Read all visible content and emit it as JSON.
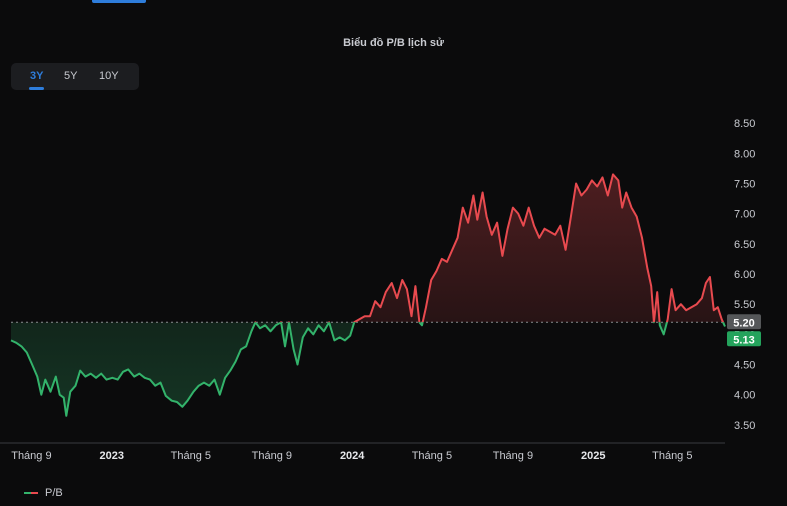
{
  "header": {
    "title": "Biểu đồ P/B lịch sử"
  },
  "tabs": [
    {
      "label": "3Y",
      "active": true
    },
    {
      "label": "5Y",
      "active": false
    },
    {
      "label": "10Y",
      "active": false
    }
  ],
  "legend": {
    "label": "P/B"
  },
  "colors": {
    "up": "#e84a4f",
    "down": "#33b36b",
    "active_tab": "#2e7ddb",
    "baseline_badge": "#555759",
    "current_badge": "#24a35c"
  },
  "chart_data": {
    "type": "area",
    "series_name": "P/B",
    "ylim": [
      3.2,
      8.75
    ],
    "yticks": [
      "3.50",
      "4.00",
      "4.50",
      "5.00",
      "5.50",
      "6.00",
      "6.50",
      "7.00",
      "7.50",
      "8.00",
      "8.50"
    ],
    "x_range": [
      "2022-08-01",
      "2025-07-20"
    ],
    "xticks": [
      {
        "date": "2022-09-01",
        "label": "Tháng 9",
        "bold": false
      },
      {
        "date": "2023-01-01",
        "label": "2023",
        "bold": true
      },
      {
        "date": "2023-05-01",
        "label": "Tháng 5",
        "bold": false
      },
      {
        "date": "2023-09-01",
        "label": "Tháng 9",
        "bold": false
      },
      {
        "date": "2024-01-01",
        "label": "2024",
        "bold": true
      },
      {
        "date": "2024-05-01",
        "label": "Tháng 5",
        "bold": false
      },
      {
        "date": "2024-09-01",
        "label": "Tháng 9",
        "bold": false
      },
      {
        "date": "2025-01-01",
        "label": "2025",
        "bold": true
      },
      {
        "date": "2025-05-01",
        "label": "Tháng 5",
        "bold": false
      }
    ],
    "baseline": {
      "value": 5.2,
      "label": "5.20"
    },
    "current": {
      "value": 5.13,
      "label": "5.13"
    },
    "points": [
      [
        "2022-08-01",
        4.9
      ],
      [
        "2022-08-09",
        4.86
      ],
      [
        "2022-08-17",
        4.8
      ],
      [
        "2022-08-25",
        4.7
      ],
      [
        "2022-09-02",
        4.5
      ],
      [
        "2022-09-10",
        4.3
      ],
      [
        "2022-09-16",
        4.0
      ],
      [
        "2022-09-22",
        4.25
      ],
      [
        "2022-09-30",
        4.05
      ],
      [
        "2022-10-08",
        4.3
      ],
      [
        "2022-10-14",
        4.0
      ],
      [
        "2022-10-20",
        3.95
      ],
      [
        "2022-10-24",
        3.65
      ],
      [
        "2022-10-30",
        4.05
      ],
      [
        "2022-11-07",
        4.15
      ],
      [
        "2022-11-14",
        4.4
      ],
      [
        "2022-11-22",
        4.3
      ],
      [
        "2022-11-30",
        4.35
      ],
      [
        "2022-12-08",
        4.28
      ],
      [
        "2022-12-16",
        4.35
      ],
      [
        "2022-12-24",
        4.25
      ],
      [
        "2023-01-02",
        4.28
      ],
      [
        "2023-01-10",
        4.25
      ],
      [
        "2023-01-18",
        4.38
      ],
      [
        "2023-01-26",
        4.42
      ],
      [
        "2023-02-04",
        4.3
      ],
      [
        "2023-02-12",
        4.35
      ],
      [
        "2023-02-20",
        4.28
      ],
      [
        "2023-02-28",
        4.25
      ],
      [
        "2023-03-08",
        4.15
      ],
      [
        "2023-03-16",
        4.2
      ],
      [
        "2023-03-24",
        3.98
      ],
      [
        "2023-04-02",
        3.9
      ],
      [
        "2023-04-10",
        3.88
      ],
      [
        "2023-04-18",
        3.8
      ],
      [
        "2023-04-26",
        3.9
      ],
      [
        "2023-05-05",
        4.05
      ],
      [
        "2023-05-13",
        4.15
      ],
      [
        "2023-05-21",
        4.2
      ],
      [
        "2023-05-29",
        4.15
      ],
      [
        "2023-06-06",
        4.25
      ],
      [
        "2023-06-14",
        4.0
      ],
      [
        "2023-06-22",
        4.28
      ],
      [
        "2023-06-30",
        4.4
      ],
      [
        "2023-07-08",
        4.55
      ],
      [
        "2023-07-16",
        4.75
      ],
      [
        "2023-07-24",
        4.8
      ],
      [
        "2023-08-01",
        5.05
      ],
      [
        "2023-08-07",
        5.2
      ],
      [
        "2023-08-14",
        5.1
      ],
      [
        "2023-08-22",
        5.15
      ],
      [
        "2023-08-30",
        5.05
      ],
      [
        "2023-09-07",
        5.15
      ],
      [
        "2023-09-15",
        5.2
      ],
      [
        "2023-09-21",
        4.8
      ],
      [
        "2023-09-27",
        5.2
      ],
      [
        "2023-10-04",
        4.75
      ],
      [
        "2023-10-10",
        4.5
      ],
      [
        "2023-10-18",
        4.95
      ],
      [
        "2023-10-26",
        5.1
      ],
      [
        "2023-11-03",
        5.0
      ],
      [
        "2023-11-11",
        5.15
      ],
      [
        "2023-11-19",
        5.05
      ],
      [
        "2023-11-27",
        5.2
      ],
      [
        "2023-12-05",
        4.9
      ],
      [
        "2023-12-13",
        4.95
      ],
      [
        "2023-12-21",
        4.9
      ],
      [
        "2023-12-29",
        4.98
      ],
      [
        "2024-01-04",
        5.2
      ],
      [
        "2024-01-12",
        5.25
      ],
      [
        "2024-01-20",
        5.3
      ],
      [
        "2024-01-28",
        5.3
      ],
      [
        "2024-02-05",
        5.55
      ],
      [
        "2024-02-13",
        5.45
      ],
      [
        "2024-02-21",
        5.7
      ],
      [
        "2024-03-01",
        5.85
      ],
      [
        "2024-03-09",
        5.6
      ],
      [
        "2024-03-17",
        5.9
      ],
      [
        "2024-03-24",
        5.75
      ],
      [
        "2024-03-31",
        5.3
      ],
      [
        "2024-04-06",
        5.8
      ],
      [
        "2024-04-12",
        5.2
      ],
      [
        "2024-04-16",
        5.15
      ],
      [
        "2024-04-22",
        5.45
      ],
      [
        "2024-04-30",
        5.9
      ],
      [
        "2024-05-08",
        6.05
      ],
      [
        "2024-05-16",
        6.25
      ],
      [
        "2024-05-24",
        6.2
      ],
      [
        "2024-06-01",
        6.4
      ],
      [
        "2024-06-09",
        6.6
      ],
      [
        "2024-06-17",
        7.1
      ],
      [
        "2024-06-25",
        6.85
      ],
      [
        "2024-07-03",
        7.3
      ],
      [
        "2024-07-09",
        6.9
      ],
      [
        "2024-07-17",
        7.35
      ],
      [
        "2024-07-23",
        6.95
      ],
      [
        "2024-07-31",
        6.65
      ],
      [
        "2024-08-08",
        6.85
      ],
      [
        "2024-08-16",
        6.3
      ],
      [
        "2024-08-24",
        6.75
      ],
      [
        "2024-09-01",
        7.1
      ],
      [
        "2024-09-09",
        7.0
      ],
      [
        "2024-09-17",
        6.8
      ],
      [
        "2024-09-25",
        7.1
      ],
      [
        "2024-10-03",
        6.8
      ],
      [
        "2024-10-11",
        6.6
      ],
      [
        "2024-10-19",
        6.75
      ],
      [
        "2024-10-27",
        6.7
      ],
      [
        "2024-11-04",
        6.65
      ],
      [
        "2024-11-12",
        6.8
      ],
      [
        "2024-11-20",
        6.4
      ],
      [
        "2024-11-28",
        6.95
      ],
      [
        "2024-12-06",
        7.5
      ],
      [
        "2024-12-14",
        7.3
      ],
      [
        "2024-12-22",
        7.4
      ],
      [
        "2024-12-30",
        7.55
      ],
      [
        "2025-01-07",
        7.45
      ],
      [
        "2025-01-15",
        7.6
      ],
      [
        "2025-01-23",
        7.3
      ],
      [
        "2025-01-31",
        7.65
      ],
      [
        "2025-02-08",
        7.55
      ],
      [
        "2025-02-14",
        7.1
      ],
      [
        "2025-02-20",
        7.35
      ],
      [
        "2025-02-28",
        7.1
      ],
      [
        "2025-03-08",
        6.95
      ],
      [
        "2025-03-16",
        6.6
      ],
      [
        "2025-03-24",
        6.1
      ],
      [
        "2025-03-30",
        5.8
      ],
      [
        "2025-04-03",
        5.2
      ],
      [
        "2025-04-08",
        5.7
      ],
      [
        "2025-04-12",
        5.15
      ],
      [
        "2025-04-18",
        5.0
      ],
      [
        "2025-04-24",
        5.25
      ],
      [
        "2025-04-30",
        5.75
      ],
      [
        "2025-05-06",
        5.4
      ],
      [
        "2025-05-14",
        5.5
      ],
      [
        "2025-05-22",
        5.4
      ],
      [
        "2025-05-30",
        5.45
      ],
      [
        "2025-06-07",
        5.5
      ],
      [
        "2025-06-15",
        5.6
      ],
      [
        "2025-06-21",
        5.85
      ],
      [
        "2025-06-27",
        5.95
      ],
      [
        "2025-07-03",
        5.4
      ],
      [
        "2025-07-09",
        5.45
      ],
      [
        "2025-07-15",
        5.25
      ],
      [
        "2025-07-20",
        5.13
      ]
    ]
  }
}
